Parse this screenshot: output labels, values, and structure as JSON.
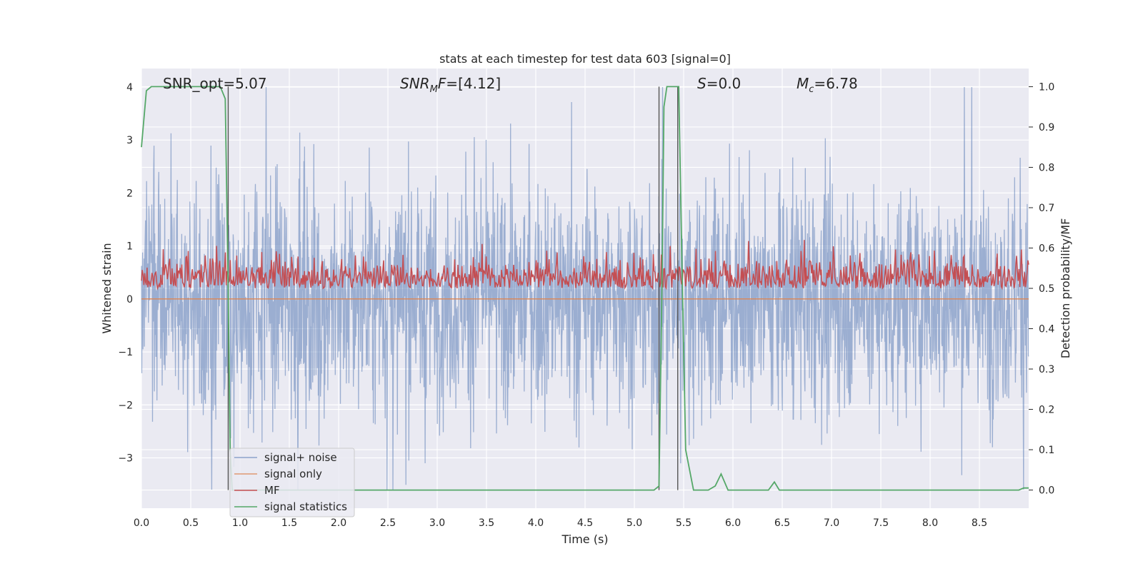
{
  "chart_data": {
    "type": "line",
    "title": "stats at each timestep for test data 603 [signal=0]",
    "xlabel": "Time (s)",
    "ylabel_left": "Whitened strain",
    "ylabel_right": "Detection probability/MF",
    "xlim": [
      0.0,
      9.0
    ],
    "ylim_left": [
      -3.95,
      4.35
    ],
    "ylim_right": [
      -0.045,
      1.045
    ],
    "x_ticks": [
      "0.0",
      "0.5",
      "1.0",
      "1.5",
      "2.0",
      "2.5",
      "3.0",
      "3.5",
      "4.0",
      "4.5",
      "5.0",
      "5.5",
      "6.0",
      "6.5",
      "7.0",
      "7.5",
      "8.0",
      "8.5"
    ],
    "y_ticks_left": [
      -3,
      -2,
      -1,
      0,
      1,
      2,
      3,
      4
    ],
    "y_ticks_right": [
      "0.0",
      "0.1",
      "0.2",
      "0.3",
      "0.4",
      "0.5",
      "0.6",
      "0.7",
      "0.8",
      "0.9",
      "1.0"
    ],
    "grid": true,
    "legend_position": "lower-left",
    "annotations": {
      "snr_opt": "SNR_opt=5.07",
      "snr_mf": "[4.12]",
      "s_val": "0.0",
      "mc_val": "6.78"
    },
    "series": [
      {
        "name": "signal+ noise",
        "axis": "left",
        "color": "#4c72b0",
        "alpha": 0.5,
        "description_values": {
          "mean": 0.0,
          "approx_abs_max": 4.0
        }
      },
      {
        "name": "signal only",
        "axis": "left",
        "color": "#dd8452",
        "values_constant": 0.0
      },
      {
        "name": "MF",
        "axis": "right",
        "color": "#c44e52",
        "description_values": {
          "mean": 0.52,
          "min": 0.5,
          "max": 0.62
        }
      },
      {
        "name": "signal statistics",
        "axis": "right",
        "color": "#55a868",
        "x": [
          0.0,
          0.05,
          0.1,
          0.15,
          0.2,
          0.3,
          0.4,
          0.5,
          0.6,
          0.7,
          0.8,
          0.85,
          0.88,
          0.9,
          0.92,
          0.95,
          1.0,
          1.5,
          2.0,
          2.5,
          3.0,
          3.5,
          4.0,
          4.5,
          5.0,
          5.2,
          5.25,
          5.28,
          5.3,
          5.33,
          5.35,
          5.4,
          5.45,
          5.48,
          5.52,
          5.6,
          5.75,
          5.82,
          5.88,
          5.95,
          6.0,
          6.2,
          6.36,
          6.42,
          6.47,
          6.55,
          6.8,
          7.5,
          8.0,
          8.5,
          8.9,
          8.95,
          9.0
        ],
        "y": [
          0.85,
          0.99,
          1.0,
          1.0,
          1.0,
          1.0,
          1.0,
          1.0,
          1.0,
          1.0,
          1.0,
          0.97,
          0.5,
          0.1,
          0.0,
          0.0,
          0.0,
          0.0,
          0.0,
          0.0,
          0.0,
          0.0,
          0.0,
          0.0,
          0.0,
          0.0,
          0.01,
          0.5,
          0.95,
          1.0,
          1.0,
          1.0,
          1.0,
          0.6,
          0.1,
          0.0,
          0.0,
          0.01,
          0.04,
          0.0,
          0.0,
          0.0,
          0.0,
          0.02,
          0.0,
          0.0,
          0.0,
          0.0,
          0.0,
          0.0,
          0.0,
          0.005,
          0.005
        ]
      }
    ],
    "vlines": [
      0.88,
      5.25,
      5.44
    ]
  }
}
